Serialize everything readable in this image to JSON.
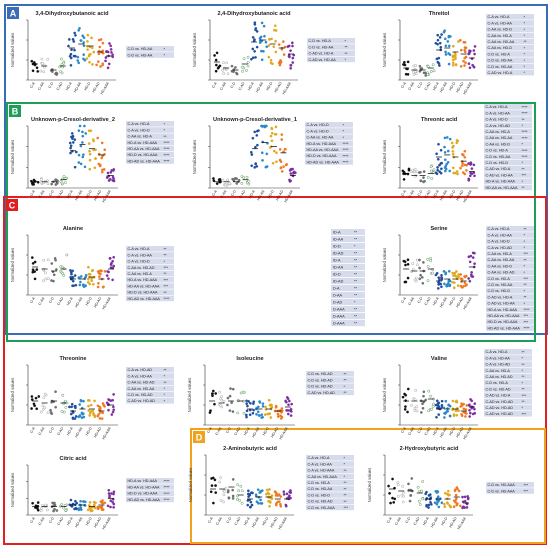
{
  "colors": {
    "panel_A": "#3a6db5",
    "panel_B": "#1f9e58",
    "panel_C": "#e02020",
    "panel_D": "#f2a21a",
    "table_fill": "#d7dcec",
    "group_colors": [
      "#111111",
      "#8c8c8c",
      "#6e6e6e",
      "#2e7d32",
      "#1f4e9e",
      "#2a88c8",
      "#e0a820",
      "#f07820",
      "#7b2fa0",
      "#d21f3c"
    ]
  },
  "panels": [
    {
      "letter": "A",
      "color_key": "panel_A"
    },
    {
      "letter": "B",
      "color_key": "panel_B"
    },
    {
      "letter": "C",
      "color_key": "panel_C"
    },
    {
      "letter": "D",
      "color_key": "panel_D"
    }
  ],
  "ylabel": "Normalized values",
  "groups": [
    "C-A",
    "C-AA",
    "C-D",
    "C-AD",
    "HD-A",
    "HD-AA",
    "HD-D",
    "HD-AD",
    "HD-AAA"
  ],
  "chart_data": [
    {
      "type": "scatter",
      "title": "3,4-Dihydroxybutanoic acid",
      "group_means": [
        0.8,
        0.7,
        0.5,
        0.7,
        1.6,
        1.8,
        1.7,
        1.4,
        1.2
      ],
      "table": [
        [
          "C-D vs. HD-AA",
          "*"
        ],
        [
          "C-D vs. HD-AA",
          "*"
        ]
      ]
    },
    {
      "type": "scatter",
      "title": "2,4-Dihydroxybutanoic acid",
      "group_means": [
        0.9,
        0.6,
        0.5,
        0.8,
        1.9,
        2.0,
        1.8,
        1.6,
        1.3
      ],
      "table": [
        [
          "C-D vs. HD-A",
          "*"
        ],
        [
          "C-D vs. HD-AA",
          "**"
        ],
        [
          "C-AD vs. HD-A",
          "**"
        ],
        [
          "C-AD vs. HD-AA",
          "*"
        ]
      ]
    },
    {
      "type": "scatter",
      "title": "Threitol",
      "group_means": [
        0.6,
        0.5,
        0.5,
        0.6,
        1.5,
        1.6,
        1.4,
        1.3,
        1.1
      ],
      "table": [
        [
          "C-A vs. HD-A",
          "*"
        ],
        [
          "C-A vs. HD-AA",
          "*"
        ],
        [
          "C-AA vs. HD-D",
          "*"
        ],
        [
          "C-AA vs. HD-A",
          "*"
        ],
        [
          "C-AA vs. HD-AA",
          "**"
        ],
        [
          "C-AA vs. HD-D",
          "*"
        ],
        [
          "C-D vs. HD-A",
          "*"
        ],
        [
          "C-D vs. HD-AA",
          "*"
        ],
        [
          "C-D vs. HD-AA",
          "*"
        ],
        [
          "C-AD vs. HD-A",
          "*"
        ]
      ]
    },
    {
      "type": "scatter",
      "title": "Unknown-p-Cresol-derivative_2",
      "group_means": [
        0.3,
        0.3,
        0.3,
        0.4,
        1.8,
        2.1,
        1.9,
        1.6,
        0.6
      ],
      "table": [
        [
          "C-A vs. HD-A",
          "*"
        ],
        [
          "C-A vs. HD-D",
          "*"
        ],
        [
          "C-AA vs. HD-A",
          "**"
        ],
        [
          "HD-A vs. HD-AAA",
          "****"
        ],
        [
          "HD-AA vs. HD-AAA",
          "****"
        ],
        [
          "HD-D vs. HD-AAA",
          "****"
        ],
        [
          "HD-AD vs. HD-AAA",
          "****"
        ]
      ]
    },
    {
      "type": "scatter",
      "title": "Unknown-p-Cresol-derivative_1",
      "group_means": [
        0.3,
        0.3,
        0.3,
        0.4,
        1.9,
        2.2,
        2.0,
        1.7,
        0.6
      ],
      "table": [
        [
          "C-A vs. HD-D",
          "*"
        ],
        [
          "C-A vs. HD-D",
          "*"
        ],
        [
          "C-AA vs. HD-AA",
          "*"
        ],
        [
          "HD-A vs. HD-AAA",
          "****"
        ],
        [
          "HD-AA vs. HD-AAA",
          "****"
        ],
        [
          "HD-D vs. HD-AAA",
          "****"
        ],
        [
          "HD-AD vs. HD-AAA",
          "****"
        ]
      ]
    },
    {
      "type": "scatter",
      "title": "Threonic acid",
      "group_means": [
        0.7,
        0.6,
        0.6,
        0.7,
        1.5,
        1.6,
        1.5,
        1.3,
        0.8
      ],
      "table": [
        [
          "C-A vs. HD-A",
          "****"
        ],
        [
          "C-A vs. HD-AA",
          "****"
        ],
        [
          "C-A vs. HD-D",
          "**"
        ],
        [
          "C-A vs. HD-AD",
          "*"
        ],
        [
          "C-AA vs. HD-A",
          "****"
        ],
        [
          "C-AA vs. HD-AA",
          "****"
        ],
        [
          "C-AA vs. HD-D",
          "*"
        ],
        [
          "C-D vs. HD-A",
          "****"
        ],
        [
          "C-D vs. HD-AA",
          "****"
        ],
        [
          "C-D vs. HD-D",
          "*"
        ],
        [
          "C-AD vs. HD-A",
          "**"
        ],
        [
          "C-AD vs. HD-AA",
          "***"
        ],
        [
          "HD-A vs. HD-AAA",
          "*"
        ],
        [
          "HD-AA vs. HD-AAA",
          "**"
        ]
      ]
    },
    {
      "type": "scatter",
      "title": "Alanine",
      "group_means": [
        1.4,
        1.3,
        1.2,
        1.3,
        0.8,
        0.8,
        0.9,
        0.8,
        1.3
      ],
      "table": [
        [
          "C-A vs. HD-A",
          "**"
        ],
        [
          "C-A vs. HD-AA",
          "**"
        ],
        [
          "C-A vs. HD-D",
          "*"
        ],
        [
          "C-AA vs. HD-AD",
          "***"
        ],
        [
          "C-AA vs. HD-A",
          "**"
        ],
        [
          "HD-A vs. HD-AAA",
          "***"
        ],
        [
          "HD-AA vs. HD-AAA",
          "***"
        ],
        [
          "HD-D vs. HD-AAA",
          "**"
        ],
        [
          "HD-AD vs. HD-AAA",
          "****"
        ]
      ]
    },
    {
      "type": "scatter",
      "title": "Serine",
      "group_means": [
        1.3,
        1.2,
        1.2,
        1.3,
        0.7,
        0.8,
        0.8,
        0.7,
        1.4
      ],
      "table": [
        [
          "C-A vs. HD-A",
          "**"
        ],
        [
          "C-A vs. HD-AA",
          "*"
        ],
        [
          "C-A vs. HD-D",
          "*"
        ],
        [
          "C-A vs. HD-AD",
          "*"
        ],
        [
          "C-AA vs. HD-A",
          "***"
        ],
        [
          "C-AA vs. HD-AA",
          "**"
        ],
        [
          "C-AA vs. HD-D",
          "*"
        ],
        [
          "C-AA vs. HD-AD",
          "*"
        ],
        [
          "C-D vs. HD-A",
          "***"
        ],
        [
          "C-D vs. HD-AA",
          "**"
        ],
        [
          "C-D vs. HD-D",
          "*"
        ],
        [
          "C-AD vs. HD-A",
          "**"
        ],
        [
          "C-AD vs. HD-AA",
          "*"
        ],
        [
          "HD-A vs. HD-AAA",
          "****"
        ],
        [
          "HD-AA vs. HD-AAA",
          "***"
        ],
        [
          "HD-D vs. HD-AAA",
          "***"
        ],
        [
          "HD-AD vs. HD-AAA",
          "****"
        ]
      ]
    },
    {
      "type": "scatter",
      "title": "Threonine",
      "group_means": [
        1.2,
        1.1,
        1.2,
        1.1,
        0.7,
        0.8,
        0.8,
        0.7,
        1.0
      ],
      "table": [
        [
          "C-A vs. HD-AD",
          "**"
        ],
        [
          "C-A vs. HD-AA",
          "*"
        ],
        [
          "C-AA vs. HD-AD",
          "**"
        ],
        [
          "C-AA vs. HD-AA",
          "*"
        ],
        [
          "C-D vs. HD-AD",
          "*"
        ],
        [
          "C-AD vs. HD-AD",
          "*"
        ]
      ]
    },
    {
      "type": "scatter",
      "title": "Isoleucine",
      "group_means": [
        1.2,
        1.1,
        1.2,
        1.2,
        0.8,
        0.8,
        0.8,
        0.7,
        0.9
      ],
      "table": [
        [
          "C-D vs. HD-AD",
          "**"
        ],
        [
          "C-D vs. HD-AD",
          "**"
        ],
        [
          "C-D vs. HD-AD",
          "*"
        ],
        [
          "C-AD vs. HD-AD",
          "**"
        ]
      ]
    },
    {
      "type": "scatter",
      "title": "Valine",
      "group_means": [
        1.2,
        1.2,
        1.2,
        1.3,
        0.8,
        0.8,
        0.8,
        0.7,
        0.9
      ],
      "table": [
        [
          "C-A vs. HD-A",
          "**"
        ],
        [
          "C-A vs. HD-AA",
          "*"
        ],
        [
          "C-A vs. HD-AD",
          "**"
        ],
        [
          "C-AA vs. HD-A",
          "*"
        ],
        [
          "C-AA vs. HD-AD",
          "**"
        ],
        [
          "C-D vs. HD-A",
          "*"
        ],
        [
          "C-D vs. HD-AD",
          "**"
        ],
        [
          "C-AD vs. HD-A",
          "***"
        ],
        [
          "C-AD vs. HD-AD",
          "**"
        ],
        [
          "C-AD vs. HD-AD",
          "*"
        ],
        [
          "C-AD vs. HD-AD",
          "***"
        ]
      ]
    },
    {
      "type": "scatter",
      "title": "Citric acid",
      "group_means": [
        0.5,
        0.5,
        0.5,
        0.5,
        0.6,
        0.6,
        0.5,
        0.6,
        1.0
      ],
      "table": [
        [
          "HD-A vs. HD-AAA",
          "****"
        ],
        [
          "HD-AA vs. HD-AAA",
          "****"
        ],
        [
          "HD-D vs. HD-AAA",
          "****"
        ],
        [
          "HD-AD vs. HD-AAA",
          "****"
        ]
      ]
    },
    {
      "type": "scatter",
      "title": "2-Aminobutyric acid",
      "group_means": [
        1.3,
        1.3,
        1.4,
        1.0,
        0.8,
        0.9,
        0.9,
        0.8,
        0.8
      ],
      "table": [
        [
          "C-A vs. HD-A",
          "*"
        ],
        [
          "C-A vs. HD-AA",
          "*"
        ],
        [
          "C-A vs. HD-AAA",
          "**"
        ],
        [
          "C-AA vs. HD-AAA",
          "*"
        ],
        [
          "C-D vs. HD-A",
          "**"
        ],
        [
          "C-D vs. HD-AA",
          "**"
        ],
        [
          "C-D vs. HD-D",
          "**"
        ],
        [
          "C-D vs. HD-AD",
          "**"
        ],
        [
          "C-D vs. HD-AAA",
          "***"
        ]
      ]
    },
    {
      "type": "scatter",
      "title": "2-Hydroxybutyric acid",
      "group_means": [
        1.3,
        1.2,
        1.2,
        1.1,
        0.8,
        0.8,
        0.8,
        0.9,
        0.6
      ],
      "table": [
        [
          "C-D vs. HD-AAA",
          "***"
        ],
        [
          "C-D vs. HD-AAA",
          "***"
        ]
      ]
    }
  ],
  "side_table": {
    "rows": [
      [
        "ID-A",
        "**"
      ],
      [
        "ID-AA",
        "**"
      ],
      [
        "ID-D",
        "*"
      ],
      [
        "ID-AD",
        "**"
      ],
      [
        "ID-A",
        "**"
      ],
      [
        "ID-AA",
        "**"
      ],
      [
        "ID-D",
        "**"
      ],
      [
        "ID-AD",
        "**"
      ],
      [
        "D-A",
        "**"
      ],
      [
        "D-AA",
        "**"
      ],
      [
        "D-AD",
        "*"
      ],
      [
        "D-AAA",
        "**"
      ],
      [
        "D-AAA",
        "**"
      ],
      [
        "D-AAA",
        "**"
      ]
    ]
  }
}
